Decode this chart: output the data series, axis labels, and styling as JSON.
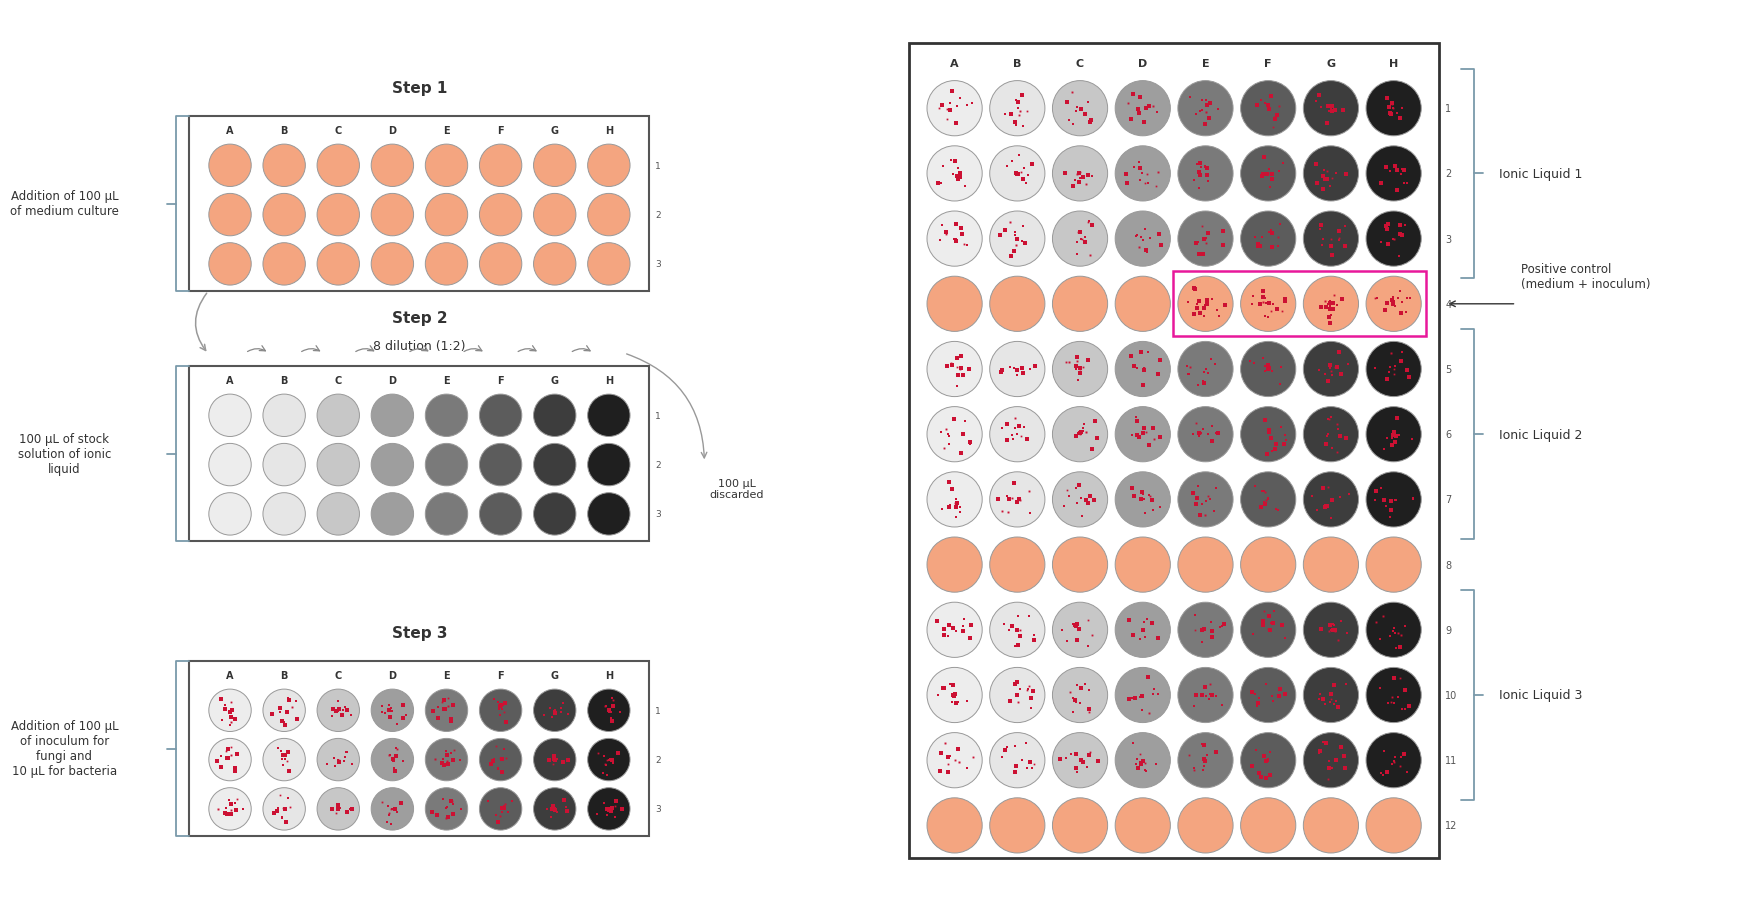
{
  "bg_color": "#ffffff",
  "salmon_color": "#F4A580",
  "red_dot_color": "#cc1133",
  "pink_box_color": "#e8189a",
  "col_labels": [
    "A",
    "B",
    "C",
    "D",
    "E",
    "F",
    "G",
    "H"
  ],
  "step1_title": "Step 1",
  "step2_title": "Step 2",
  "step3_title": "Step 3",
  "step2_subtitle": "8 dilution (1:2)",
  "left_label1": "Addition of 100 μL\nof medium culture",
  "left_label2": "100 μL of stock\nsolution of ionic\nliquid",
  "left_label3": "Addition of 100 μL\nof inoculum for\nfungi and\n10 μL for bacteria",
  "right_label_discard": "100 μL\ndiscarded",
  "right_label_il1": "Ionic Liquid 1",
  "right_label_il2": "Ionic Liquid 2",
  "right_label_il3": "Ionic Liquid 3",
  "right_label_pc": "Positive control\n(medium + inoculum)",
  "row_labels_small": [
    "1",
    "2",
    "3"
  ],
  "row_labels_big": [
    "1",
    "2",
    "3",
    "4",
    "5",
    "6",
    "7",
    "8",
    "9",
    "10",
    "11",
    "12"
  ],
  "gray_gradient_8": [
    0.07,
    0.1,
    0.22,
    0.38,
    0.52,
    0.64,
    0.76,
    0.88
  ]
}
